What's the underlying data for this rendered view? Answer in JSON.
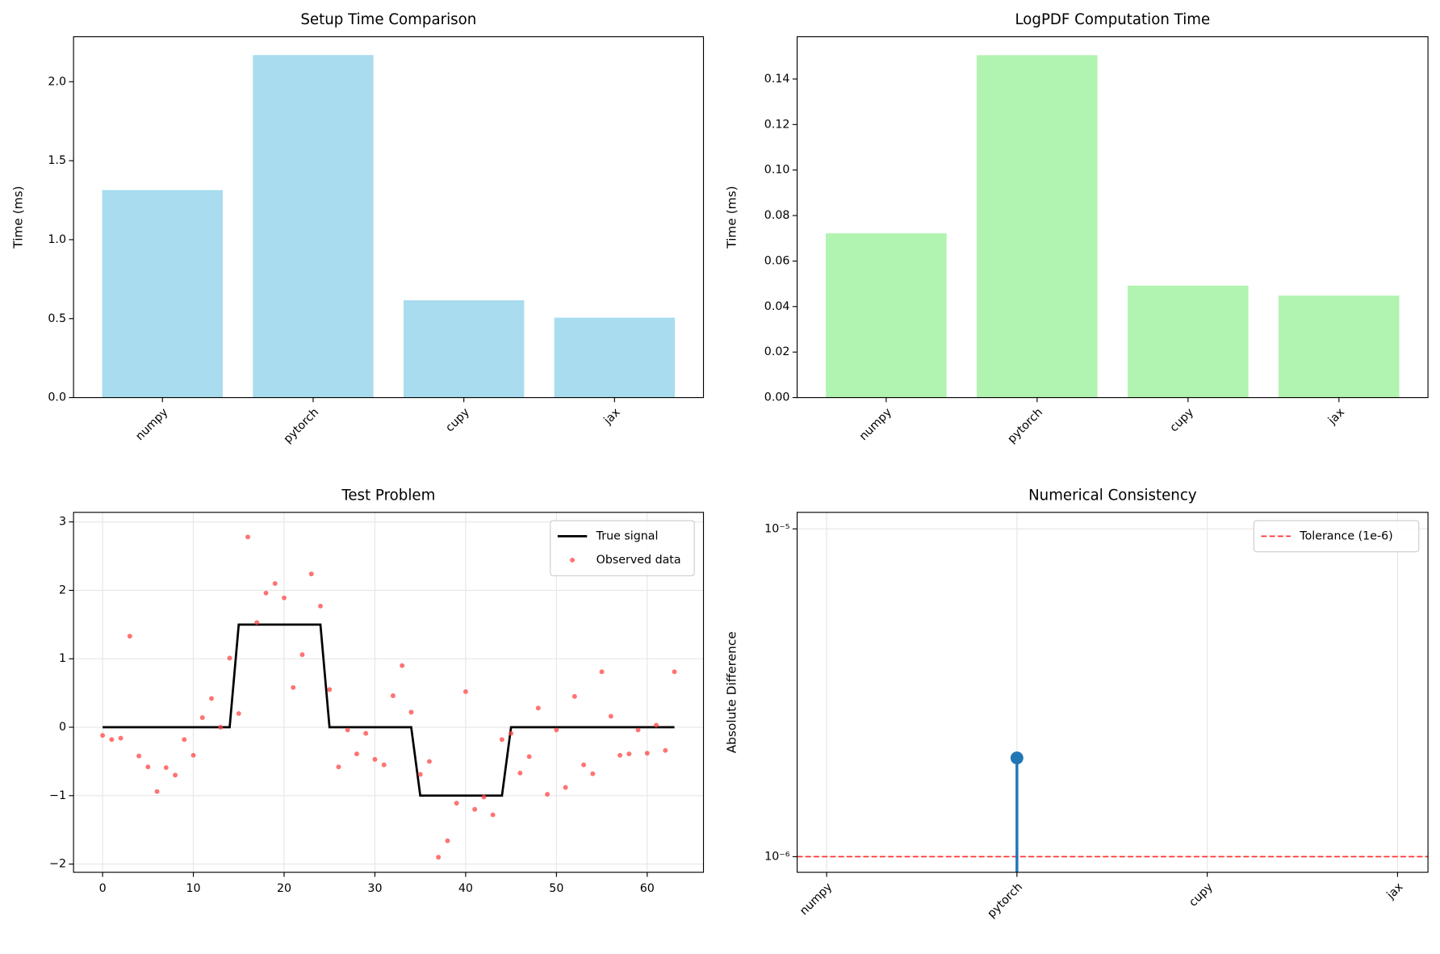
{
  "chart_data": [
    {
      "type": "bar",
      "title": "Setup Time Comparison",
      "ylabel": "Time (ms)",
      "categories": [
        "numpy",
        "pytorch",
        "cupy",
        "jax"
      ],
      "values": [
        1.314,
        2.169,
        0.616,
        0.506
      ],
      "color": "#a8dcee",
      "xlim": [
        -0.59,
        3.59
      ],
      "ylim": [
        0,
        2.285
      ],
      "yticks": [
        {
          "value": 0,
          "label": "0.0"
        },
        0.5,
        {
          "value": 1,
          "label": "1.0"
        },
        1.5,
        {
          "value": 2,
          "label": "2.0"
        }
      ],
      "grid": false
    },
    {
      "type": "bar",
      "title": "LogPDF Computation Time",
      "ylabel": "Time (ms)",
      "categories": [
        "numpy",
        "pytorch",
        "cupy",
        "jax"
      ],
      "values": [
        0.0722,
        0.1505,
        0.0492,
        0.0448
      ],
      "color": "#b1f4b1",
      "xlim": [
        -0.59,
        3.59
      ],
      "ylim": [
        0,
        0.1586
      ],
      "yticks": [
        {
          "value": 0,
          "label": "0.00"
        },
        0.02,
        0.04,
        0.06,
        0.08,
        {
          "value": 0.1,
          "label": "0.10"
        },
        0.12,
        0.14
      ],
      "grid": false
    },
    {
      "type": "line",
      "title": "Test Problem",
      "x": [
        0,
        1,
        2,
        3,
        4,
        5,
        6,
        7,
        8,
        9,
        10,
        11,
        12,
        13,
        14,
        15,
        16,
        17,
        18,
        19,
        20,
        21,
        22,
        23,
        24,
        25,
        26,
        27,
        28,
        29,
        30,
        31,
        32,
        33,
        34,
        35,
        36,
        37,
        38,
        39,
        40,
        41,
        42,
        43,
        44,
        45,
        46,
        47,
        48,
        49,
        50,
        51,
        52,
        53,
        54,
        55,
        56,
        57,
        58,
        59,
        60,
        61,
        62,
        63
      ],
      "series": [
        {
          "name": "True signal",
          "type": "line",
          "color": "#000000",
          "values": [
            0,
            0,
            0,
            0,
            0,
            0,
            0,
            0,
            0,
            0,
            0,
            0,
            0,
            0,
            0,
            1.5,
            1.5,
            1.5,
            1.5,
            1.5,
            1.5,
            1.5,
            1.5,
            1.5,
            1.5,
            0,
            0,
            0,
            0,
            0,
            0,
            0,
            0,
            0,
            0,
            -1,
            -1,
            -1,
            -1,
            -1,
            -1,
            -1,
            -1,
            -1,
            -1,
            0,
            0,
            0,
            0,
            0,
            0,
            0,
            0,
            0,
            0,
            0,
            0,
            0,
            0,
            0,
            0,
            0,
            0,
            0
          ]
        },
        {
          "name": "Observed data",
          "type": "scatter",
          "color": "#ff4444",
          "values": [
            -0.12,
            -0.18,
            -0.16,
            1.33,
            -0.42,
            -0.58,
            -0.94,
            -0.59,
            -0.7,
            -0.18,
            -0.41,
            0.14,
            0.42,
            0,
            1.01,
            0.2,
            2.78,
            1.53,
            1.96,
            2.1,
            1.89,
            0.58,
            1.06,
            2.24,
            1.77,
            0.55,
            -0.58,
            -0.04,
            -0.39,
            -0.09,
            -0.47,
            -0.55,
            0.46,
            0.9,
            0.22,
            -0.69,
            -0.5,
            -1.9,
            -1.66,
            -1.11,
            0.52,
            -1.2,
            -1.02,
            -1.28,
            -0.18,
            -0.09,
            -0.67,
            -0.43,
            0.28,
            -0.98,
            -0.04,
            -0.88,
            0.45,
            -0.55,
            -0.68,
            0.81,
            0.16,
            -0.41,
            -0.39,
            -0.04,
            -0.38,
            0.03,
            -0.34,
            0.81
          ]
        }
      ],
      "xlim": [
        -3.2,
        66.2
      ],
      "ylim": [
        -2.12,
        3.14
      ],
      "xticks": [
        0,
        10,
        20,
        30,
        40,
        50,
        60
      ],
      "yticks": [
        {
          "value": -2,
          "label": "−2"
        },
        {
          "value": -1,
          "label": "−1"
        },
        0,
        1,
        2,
        3
      ],
      "grid": true,
      "legend": "upper right"
    },
    {
      "type": "stem",
      "title": "Numerical Consistency",
      "ylabel": "Absolute Difference",
      "categories": [
        "numpy",
        "pytorch",
        "cupy",
        "jax"
      ],
      "values": [
        null,
        2e-06,
        null,
        null
      ],
      "color": "#1f77b4",
      "xlim": [
        -0.155,
        3.16
      ],
      "yscale": "log",
      "ylim": [
        8.96e-07,
        1.123e-05
      ],
      "yticks": [
        {
          "value": 1e-06,
          "label": "10⁻⁶"
        },
        {
          "value": 1e-05,
          "label": "10⁻⁵"
        }
      ],
      "threshold": {
        "label": "Tolerance (1e-6)",
        "value": 1e-06,
        "color": "#ff3333"
      },
      "grid": true,
      "legend": "upper right"
    }
  ]
}
